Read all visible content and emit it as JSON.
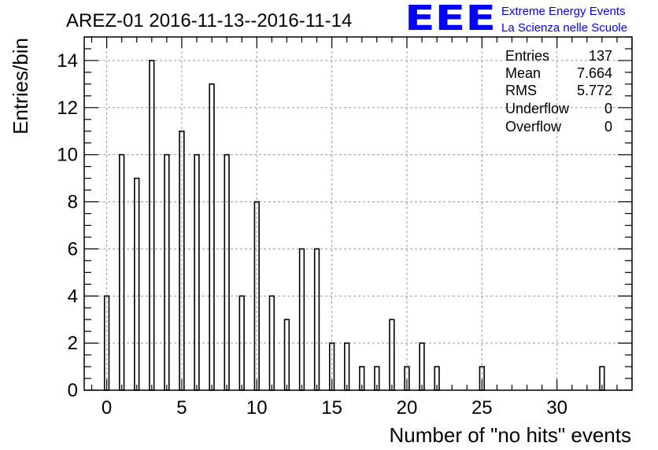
{
  "chart_data": {
    "type": "bar",
    "title": "AREZ-01 2016-11-13--2016-11-14",
    "xlabel": "Number of \"no hits\" events",
    "ylabel": "Entries/bin",
    "xlim": [
      -1.5,
      35
    ],
    "ylim": [
      0,
      15
    ],
    "xticks": [
      0,
      5,
      10,
      15,
      20,
      25,
      30
    ],
    "yticks": [
      0,
      2,
      4,
      6,
      8,
      10,
      12,
      14
    ],
    "grid": true,
    "series": [
      {
        "x": [
          0,
          1,
          2,
          3,
          4,
          5,
          6,
          7,
          8,
          9,
          10,
          11,
          12,
          13,
          14,
          15,
          16,
          17,
          18,
          19,
          20,
          21,
          22,
          25,
          33
        ],
        "values": [
          4,
          10,
          9,
          14,
          10,
          11,
          10,
          13,
          10,
          4,
          8,
          4,
          3,
          6,
          6,
          2,
          2,
          1,
          1,
          3,
          1,
          2,
          1,
          1,
          1
        ]
      }
    ],
    "stats": {
      "position": "top-right",
      "rows": [
        {
          "label": "Entries",
          "value": "137"
        },
        {
          "label": "Mean",
          "value": "7.664"
        },
        {
          "label": "RMS",
          "value": "5.772"
        },
        {
          "label": "Underflow",
          "value": "0"
        },
        {
          "label": "Overflow",
          "value": "0"
        }
      ]
    }
  },
  "logo": {
    "mark": "EEE",
    "line1": "Extreme Energy Events",
    "line2": "La Scienza nelle Scuole",
    "color": "#0000ff"
  },
  "colors": {
    "bar_edge": "#000000",
    "grid": "#9a9a9a",
    "frame": "#000000"
  }
}
